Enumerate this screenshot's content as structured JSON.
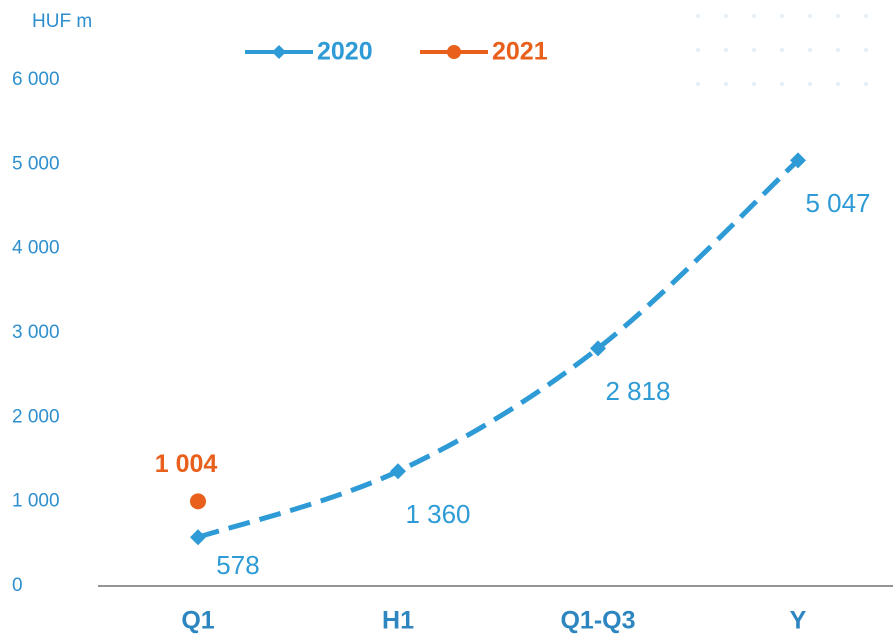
{
  "chart_data": {
    "type": "line",
    "y_label": "HUF m",
    "categories": [
      "Q1",
      "H1",
      "Q1-Q3",
      "Y"
    ],
    "series": [
      {
        "name": "2020",
        "color": "#2e9bd6",
        "marker": "diamond",
        "dashed": true,
        "values": [
          578,
          1360,
          2818,
          5047
        ],
        "value_labels": [
          "578",
          "1 360",
          "2 818",
          "5 047"
        ]
      },
      {
        "name": "2021",
        "color": "#e8601c",
        "marker": "circle",
        "values": [
          1004,
          null,
          null,
          null
        ],
        "value_labels": [
          "1 004",
          null,
          null,
          null
        ]
      }
    ],
    "ylim": [
      0,
      6000
    ],
    "yticks": [
      0,
      {
        "value": 1000,
        "label": "1 000"
      },
      {
        "value": 2000,
        "label": "2 000"
      },
      {
        "value": 3000,
        "label": "3 000"
      },
      {
        "value": 4000,
        "label": "4 000"
      },
      {
        "value": 5000,
        "label": "5 000"
      },
      {
        "value": 6000,
        "label": "6 000"
      }
    ],
    "legend": "top"
  }
}
